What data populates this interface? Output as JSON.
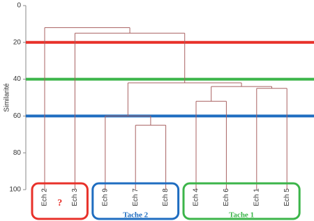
{
  "chart_data": {
    "type": "dendrogram",
    "y_label": "Similarité",
    "ylim": [
      0,
      100
    ],
    "yticks": [
      0,
      20,
      40,
      60,
      80,
      100
    ],
    "leaves": [
      "Ech 2",
      "Ech 3",
      "Ech 9",
      "Ech 7",
      "Ech 8",
      "Ech 4",
      "Ech 6",
      "Ech 1",
      "Ech 5"
    ],
    "merges": [
      {
        "join": [
          3,
          4
        ],
        "height": 65
      },
      {
        "join": [
          2,
          9
        ],
        "height": 60
      },
      {
        "join": [
          5,
          6
        ],
        "height": 52
      },
      {
        "join": [
          7,
          8
        ],
        "height": 45
      },
      {
        "join": [
          11,
          12
        ],
        "height": 44
      },
      {
        "join": [
          10,
          13
        ],
        "height": 42
      },
      {
        "join": [
          1,
          14
        ],
        "height": 15
      },
      {
        "join": [
          0,
          15
        ],
        "height": 12
      }
    ],
    "link_color": "#a86060",
    "thresholds": [
      {
        "value": 20,
        "color": "#e8312a"
      },
      {
        "value": 40,
        "color": "#3cb54a"
      },
      {
        "value": 60,
        "color": "#1f6dc0"
      }
    ],
    "groups": [
      {
        "label": "?",
        "color": "#e8312a",
        "leaves": [
          0,
          1
        ]
      },
      {
        "label": "Tache 2",
        "color": "#1f6dc0",
        "leaves": [
          2,
          4
        ]
      },
      {
        "label": "Tache 1",
        "color": "#3cb54a",
        "leaves": [
          5,
          8
        ]
      }
    ]
  }
}
